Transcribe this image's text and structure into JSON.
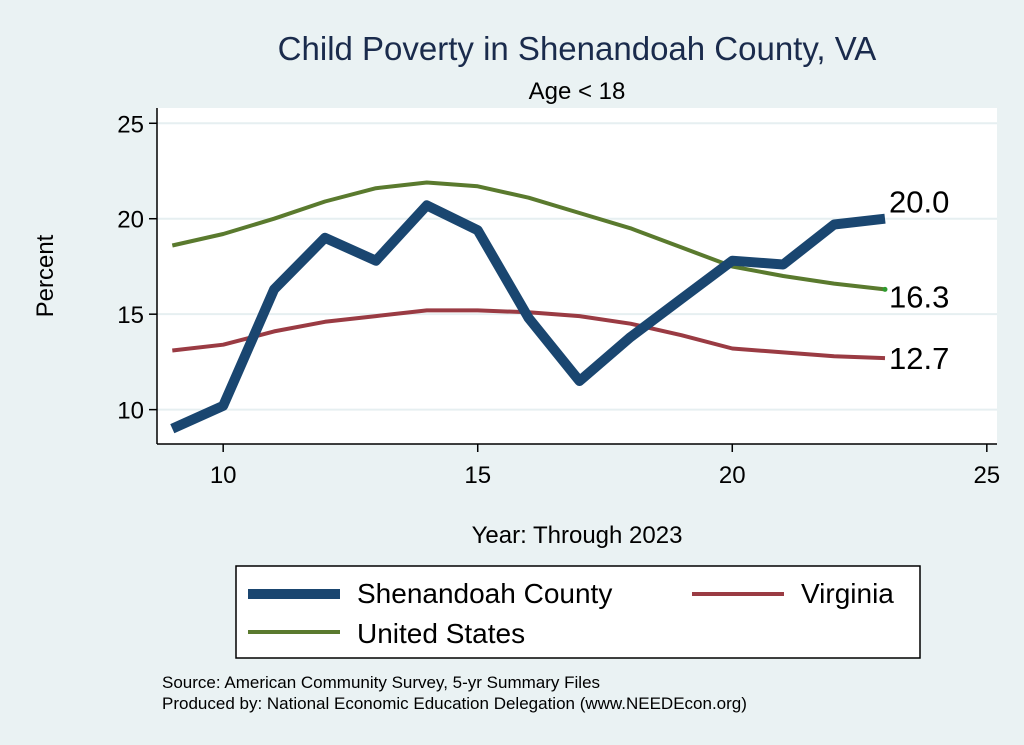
{
  "chart_data": {
    "type": "line",
    "title": "Child Poverty in Shenandoah County, VA",
    "subtitle": "Age < 18",
    "xlabel": "Year: Through 2023",
    "ylabel": "Percent",
    "xlim": [
      8.7,
      25.2
    ],
    "ylim": [
      8.2,
      25.8
    ],
    "xticks": [
      10,
      15,
      20,
      25
    ],
    "yticks": [
      10,
      15,
      20,
      25
    ],
    "grid": true,
    "legend_position": "bottom",
    "series": [
      {
        "name": "Shenandoah County",
        "color": "#1a4670",
        "x": [
          9,
          10,
          11,
          12,
          13,
          14,
          15,
          16,
          17,
          18,
          19,
          20,
          21,
          22,
          23
        ],
        "y": [
          9.0,
          10.2,
          16.3,
          19.0,
          17.8,
          20.7,
          19.4,
          14.8,
          11.5,
          13.8,
          15.8,
          17.8,
          17.6,
          19.7,
          20.0
        ],
        "end_label": "20.0"
      },
      {
        "name": "Virginia",
        "color": "#9a3b43",
        "x": [
          9,
          10,
          11,
          12,
          13,
          14,
          15,
          16,
          17,
          18,
          19,
          20,
          21,
          22,
          23
        ],
        "y": [
          13.1,
          13.4,
          14.1,
          14.6,
          14.9,
          15.2,
          15.2,
          15.1,
          14.9,
          14.5,
          13.9,
          13.2,
          13.0,
          12.8,
          12.7
        ],
        "end_label": "12.7"
      },
      {
        "name": "United States",
        "color": "#5a7a2e",
        "x": [
          9,
          10,
          11,
          12,
          13,
          14,
          15,
          16,
          17,
          18,
          19,
          20,
          21,
          22,
          23
        ],
        "y": [
          18.6,
          19.2,
          20.0,
          20.9,
          21.6,
          21.9,
          21.7,
          21.1,
          20.3,
          19.5,
          18.5,
          17.5,
          17.0,
          16.6,
          16.3
        ],
        "end_label": "16.3"
      }
    ]
  },
  "notes": {
    "source": "Source: American Community Survey, 5-yr Summary Files",
    "produced_by": "Produced by: National Economic Education Delegation (www.NEEDEcon.org)"
  }
}
